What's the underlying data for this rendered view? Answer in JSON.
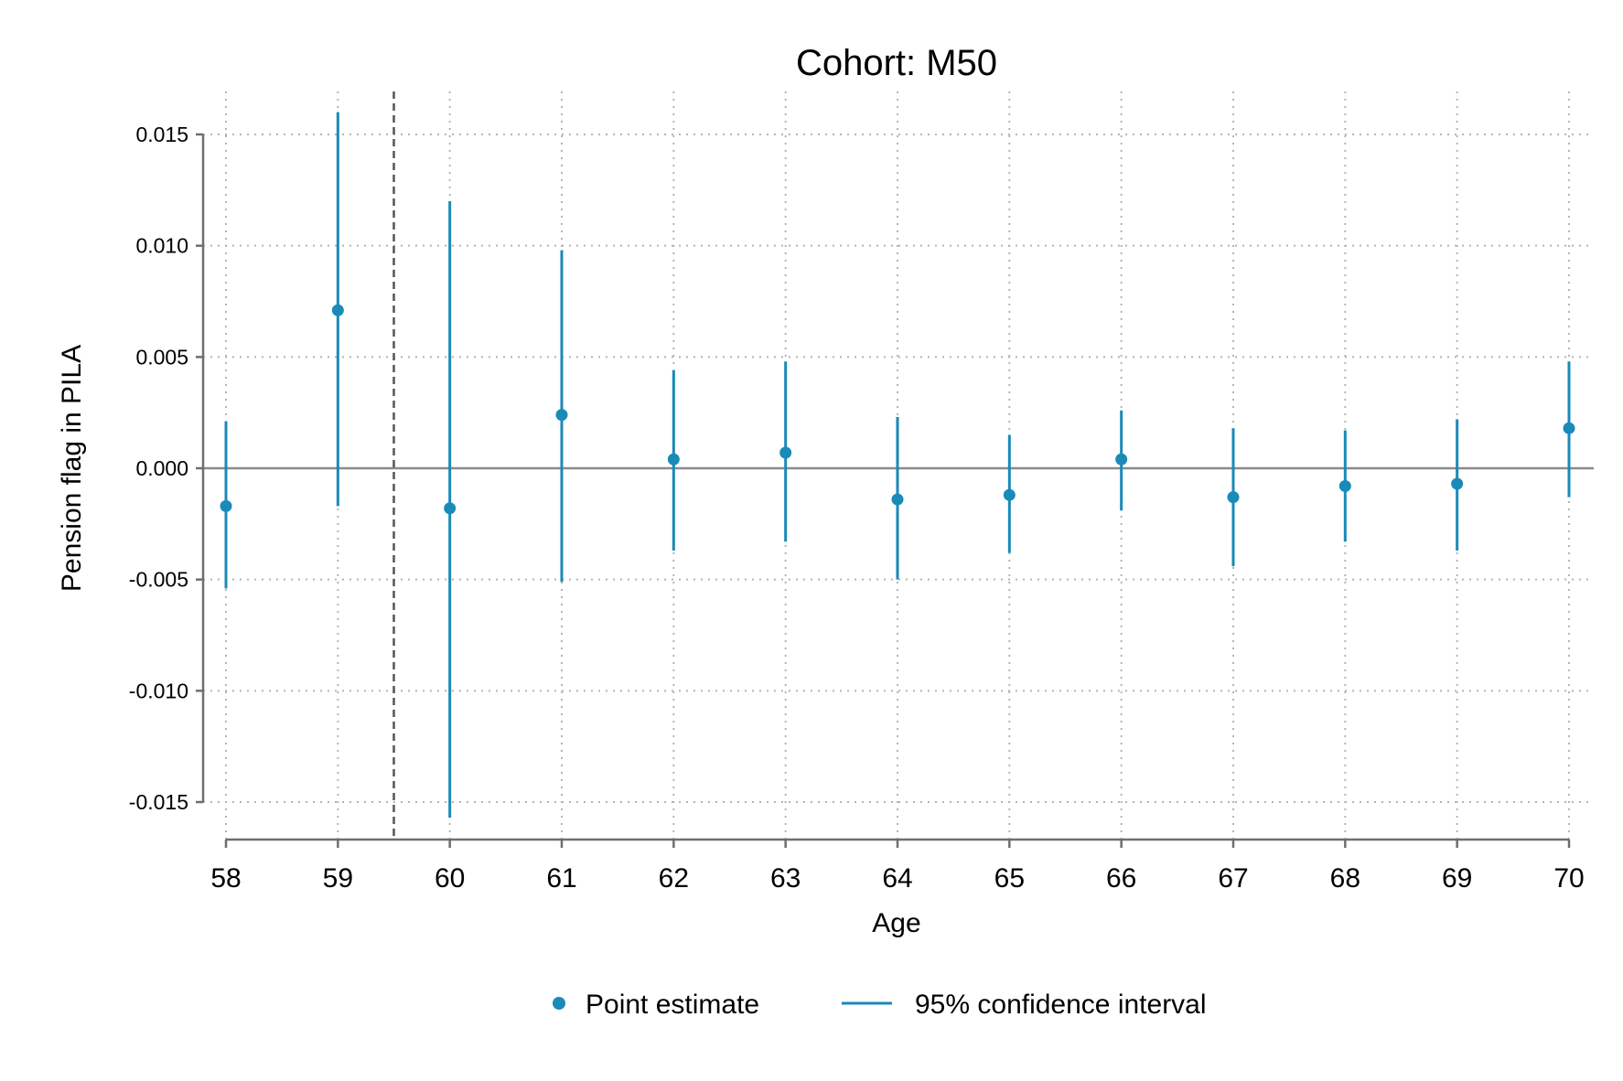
{
  "chart_data": {
    "type": "scatter",
    "title": "Cohort: M50",
    "xlabel": "Age",
    "ylabel": "Pension flag in PILA",
    "xlim": [
      57.8,
      70.2
    ],
    "ylim": [
      -0.0165,
      0.0168
    ],
    "xticks": [
      58,
      59,
      60,
      61,
      62,
      63,
      64,
      65,
      66,
      67,
      68,
      69,
      70
    ],
    "yticks": [
      -0.015,
      -0.01,
      -0.005,
      0.0,
      0.005,
      0.01,
      0.015
    ],
    "ytick_labels": [
      "-0.015",
      "-0.010",
      "-0.005",
      "0.000",
      "0.005",
      "0.010",
      "0.015"
    ],
    "grid": true,
    "reference_lines": {
      "horizontal_y": 0,
      "vertical_dashed_x": 59.5
    },
    "series": [
      {
        "name": "Point estimate",
        "x": [
          58,
          59,
          60,
          61,
          62,
          63,
          64,
          65,
          66,
          67,
          68,
          69,
          70
        ],
        "y": [
          -0.0017,
          0.0071,
          -0.0018,
          0.0024,
          0.0004,
          0.0007,
          -0.0014,
          -0.0012,
          0.0004,
          -0.0013,
          -0.0008,
          -0.0007,
          0.0018
        ]
      },
      {
        "name": "95% confidence interval",
        "x": [
          58,
          59,
          60,
          61,
          62,
          63,
          64,
          65,
          66,
          67,
          68,
          69,
          70
        ],
        "lower": [
          -0.0054,
          -0.0017,
          -0.0157,
          -0.0051,
          -0.0037,
          -0.0033,
          -0.005,
          -0.0038,
          -0.0019,
          -0.0044,
          -0.0033,
          -0.0037,
          -0.0013
        ],
        "upper": [
          0.0021,
          0.016,
          0.012,
          0.0098,
          0.0044,
          0.0048,
          0.0023,
          0.0015,
          0.0026,
          0.0018,
          0.0017,
          0.0022,
          0.0048
        ]
      }
    ],
    "legend_position": "bottom",
    "colors": {
      "series": "#1a8ab8",
      "axis": "#6e6e6e",
      "grid": "#b4b4b4",
      "zero_line": "#8a8a8a",
      "ref_line": "#555555"
    }
  }
}
